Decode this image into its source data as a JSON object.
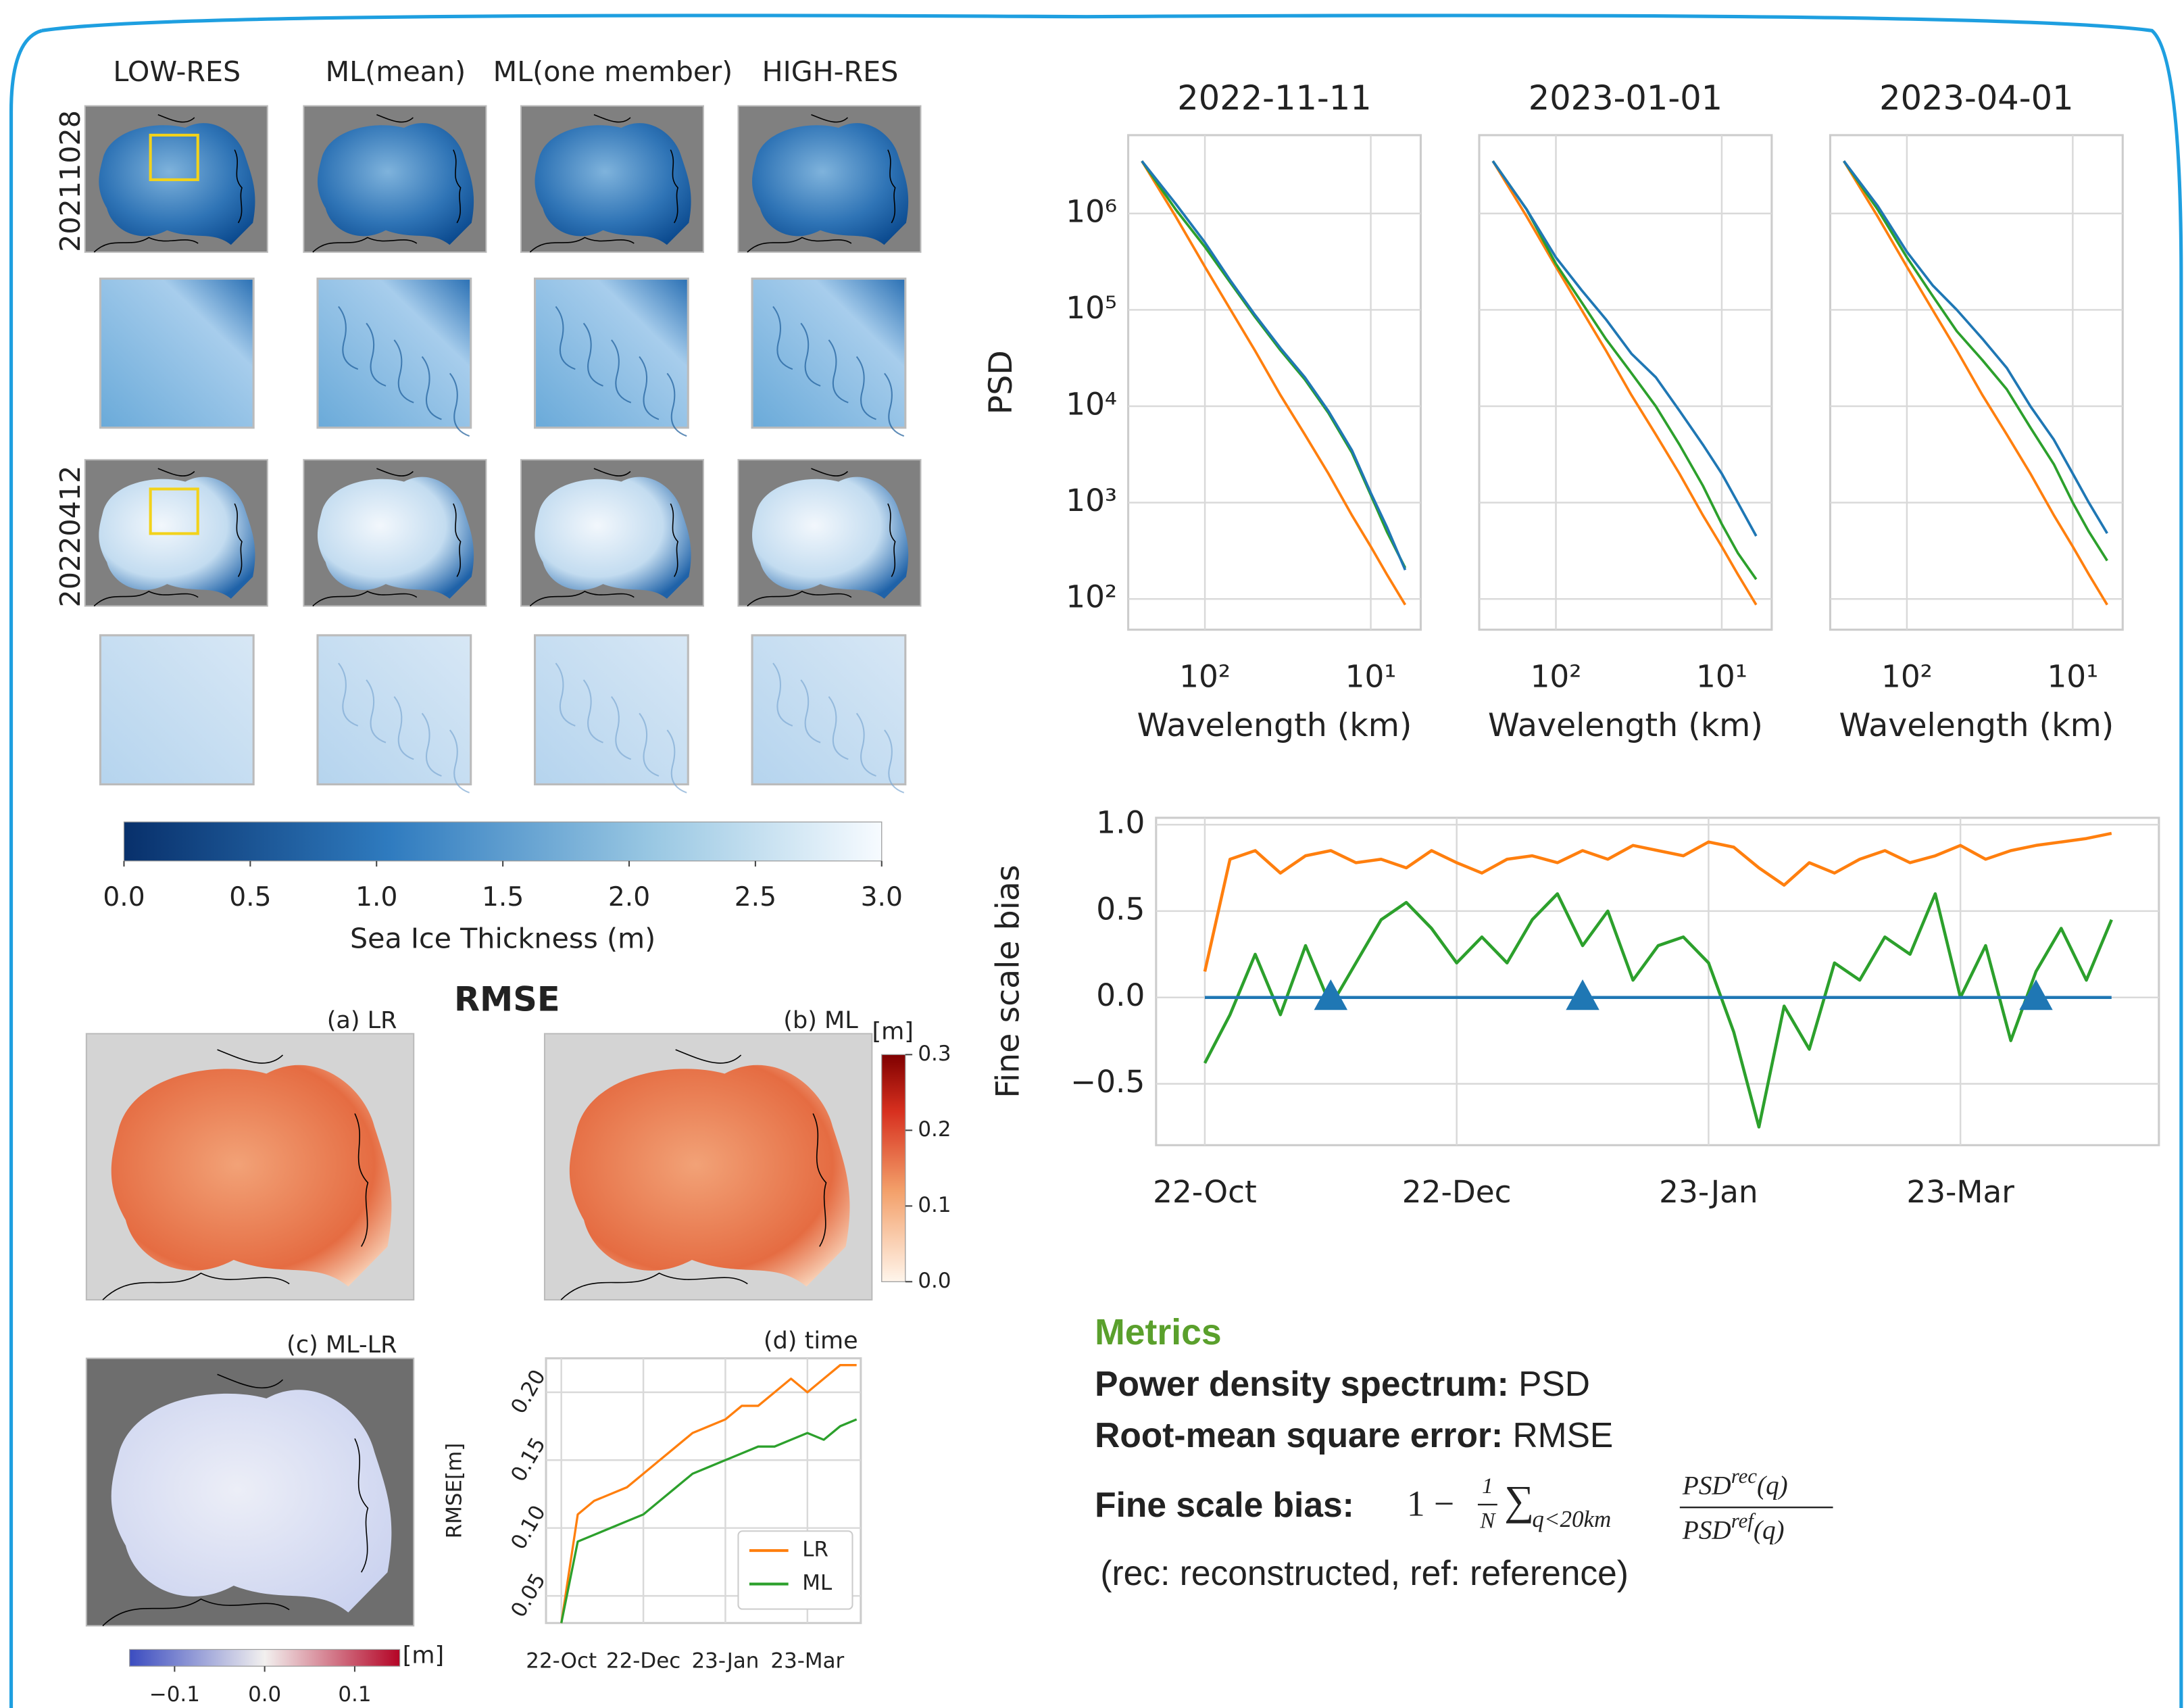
{
  "panels": {
    "columns": [
      "LOW-RES",
      "ML(mean)",
      "ML(one member)",
      "HIGH-RES"
    ],
    "rows": [
      "20211028",
      "20220412"
    ],
    "rmse_title": "RMSE",
    "rmse_panels": [
      "(a) LR",
      "(b) ML",
      "(c) ML-LR"
    ]
  },
  "colorbars": [
    {
      "label": "Sea Ice Thickness (m)",
      "lim": [
        0,
        3
      ],
      "ticks": [
        {
          "value": 0,
          "label": "0.0"
        },
        {
          "value": 0.5,
          "label": "0.5"
        },
        {
          "value": 1,
          "label": "1.0"
        },
        {
          "value": 1.5,
          "label": "1.5"
        },
        {
          "value": 2,
          "label": "2.0"
        },
        {
          "value": 2.5,
          "label": "2.5"
        },
        {
          "value": 3,
          "label": "3.0"
        }
      ]
    },
    {
      "label": "[m]",
      "lim": [
        0,
        0.3
      ],
      "ticks": [
        {
          "value": 0,
          "label": "0.0"
        },
        0.1,
        0.2,
        0.3
      ]
    },
    {
      "label": "[m]",
      "lim": [
        -0.15,
        0.15
      ],
      "ticks": [
        {
          "value": -0.1,
          "label": "−0.1"
        },
        {
          "value": 0,
          "label": "0.0"
        },
        0.1
      ]
    }
  ],
  "chart_data": [
    {
      "type": "line",
      "title": "(d) time",
      "ylabel": "RMSE[m]",
      "categories": [
        "22-Oct",
        null,
        null,
        null,
        null,
        "22-Dec",
        null,
        null,
        null,
        null,
        "23-Jan",
        null,
        null,
        null,
        null,
        "23-Mar",
        null,
        null,
        null
      ],
      "series": [
        {
          "name": "LR",
          "color": "#ff7f0e",
          "values": [
            0.03,
            0.11,
            0.12,
            0.125,
            0.13,
            0.14,
            0.15,
            0.16,
            0.17,
            0.175,
            0.18,
            0.19,
            0.19,
            0.2,
            0.21,
            0.2,
            0.21,
            0.22,
            0.22
          ]
        },
        {
          "name": "ML",
          "color": "#2ca02c",
          "values": [
            0.03,
            0.09,
            0.095,
            0.1,
            0.105,
            0.11,
            0.12,
            0.13,
            0.14,
            0.145,
            0.15,
            0.155,
            0.16,
            0.16,
            0.165,
            0.17,
            0.165,
            0.175,
            0.18
          ]
        }
      ],
      "ylim": [
        0.03,
        0.225
      ],
      "yticks": [
        0.05,
        {
          "value": 0.1,
          "label": "0.10"
        },
        0.15,
        {
          "value": 0.2,
          "label": "0.20"
        }
      ],
      "grid": true,
      "legend": "lower right"
    },
    {
      "type": "line",
      "title": "2022-11-11",
      "xlabel": "Wavelength (km)",
      "ylabel": "PSD",
      "log_x": true,
      "log_y": true,
      "x": [
        240,
        150,
        100,
        70,
        50,
        35,
        25,
        18,
        13,
        10,
        8,
        6.2
      ],
      "series": [
        {
          "color": "#ff7f0e",
          "values": [
            3500000,
            930000,
            280000,
            100000,
            38000,
            13000,
            5100,
            2000,
            740,
            350,
            180,
            87
          ]
        },
        {
          "color": "#2ca02c",
          "values": [
            3500000,
            1100000,
            450000,
            190000,
            85000,
            38000,
            19000,
            8500,
            3300,
            1200,
            500,
            210
          ]
        },
        {
          "color": "#1f77b4",
          "values": [
            3500000,
            1260000,
            500000,
            200000,
            89000,
            40000,
            20000,
            8900,
            3500,
            1260,
            560,
            200
          ]
        }
      ],
      "xlim": [
        290,
        5
      ],
      "ylim": [
        48,
        6500000
      ],
      "xticks": [
        {
          "value": 100,
          "label": "10²"
        },
        {
          "value": 10,
          "label": "10¹"
        }
      ],
      "yticks": [
        {
          "value": 100,
          "label": "10²"
        },
        {
          "value": 1000,
          "label": "10³"
        },
        {
          "value": 10000,
          "label": "10⁴"
        },
        {
          "value": 100000,
          "label": "10⁵"
        },
        {
          "value": 1000000,
          "label": "10⁶"
        }
      ],
      "grid": true
    },
    {
      "type": "line",
      "title": "2023-01-01",
      "xlabel": "Wavelength (km)",
      "log_x": true,
      "log_y": true,
      "x": [
        240,
        150,
        100,
        70,
        50,
        35,
        25,
        18,
        13,
        10,
        8,
        6.2
      ],
      "series": [
        {
          "color": "#ff7f0e",
          "values": [
            3500000,
            930000,
            280000,
            100000,
            38000,
            13000,
            5100,
            2000,
            740,
            350,
            180,
            87
          ]
        },
        {
          "color": "#2ca02c",
          "values": [
            3500000,
            1100000,
            300000,
            120000,
            50000,
            22000,
            10000,
            4000,
            1500,
            600,
            300,
            160
          ]
        },
        {
          "color": "#1f77b4",
          "values": [
            3500000,
            1100000,
            350000,
            160000,
            80000,
            35000,
            20000,
            9000,
            4000,
            2000,
            1000,
            450
          ]
        }
      ],
      "xlim": [
        290,
        5
      ],
      "ylim": [
        48,
        6500000
      ],
      "xticks": [
        {
          "value": 100,
          "label": "10²"
        },
        {
          "value": 10,
          "label": "10¹"
        }
      ],
      "grid": true
    },
    {
      "type": "line",
      "title": "2023-04-01",
      "xlabel": "Wavelength (km)",
      "log_x": true,
      "log_y": true,
      "x": [
        240,
        150,
        100,
        70,
        50,
        35,
        25,
        18,
        13,
        10,
        8,
        6.2
      ],
      "series": [
        {
          "color": "#ff7f0e",
          "values": [
            3500000,
            930000,
            280000,
            100000,
            38000,
            13000,
            5100,
            2000,
            740,
            350,
            180,
            87
          ]
        },
        {
          "color": "#2ca02c",
          "values": [
            3500000,
            1100000,
            350000,
            140000,
            60000,
            30000,
            15000,
            6000,
            2500,
            1000,
            500,
            250
          ]
        },
        {
          "color": "#1f77b4",
          "values": [
            3500000,
            1200000,
            400000,
            180000,
            100000,
            50000,
            25000,
            10000,
            4500,
            2000,
            1000,
            480
          ]
        }
      ],
      "xlim": [
        290,
        5
      ],
      "ylim": [
        48,
        6500000
      ],
      "xticks": [
        {
          "value": 100,
          "label": "10²"
        },
        {
          "value": 10,
          "label": "10¹"
        }
      ],
      "grid": true
    },
    {
      "type": "line",
      "ylabel": "Fine scale bias",
      "categories": [
        "22-Oct",
        null,
        null,
        null,
        null,
        null,
        null,
        null,
        null,
        null,
        "22-Dec",
        null,
        null,
        null,
        null,
        null,
        null,
        null,
        null,
        null,
        "23-Jan",
        null,
        null,
        null,
        null,
        null,
        null,
        null,
        null,
        null,
        "23-Mar",
        null,
        null,
        null,
        null,
        null,
        null
      ],
      "series": [
        {
          "color": "#ff7f0e",
          "values": [
            0.15,
            0.8,
            0.85,
            0.72,
            0.82,
            0.85,
            0.78,
            0.8,
            0.75,
            0.85,
            0.78,
            0.72,
            0.8,
            0.82,
            0.78,
            0.85,
            0.8,
            0.88,
            0.85,
            0.82,
            0.9,
            0.87,
            0.75,
            0.65,
            0.78,
            0.72,
            0.8,
            0.85,
            0.78,
            0.82,
            0.88,
            0.8,
            0.85,
            0.88,
            0.9,
            0.92,
            0.95
          ]
        },
        {
          "color": "#2ca02c",
          "values": [
            -0.38,
            -0.1,
            0.25,
            -0.1,
            0.3,
            -0.05,
            0.2,
            0.45,
            0.55,
            0.4,
            0.2,
            0.35,
            0.2,
            0.45,
            0.6,
            0.3,
            0.5,
            0.1,
            0.3,
            0.35,
            0.2,
            -0.2,
            -0.75,
            -0.05,
            -0.3,
            0.2,
            0.1,
            0.35,
            0.25,
            0.6,
            0,
            0.3,
            -0.25,
            0.15,
            0.4,
            0.1,
            0.45
          ]
        },
        {
          "color": "#1f77b4",
          "values": [
            0,
            0,
            0,
            0,
            0,
            0,
            0,
            0,
            0,
            0,
            0,
            0,
            0,
            0,
            0,
            0,
            0,
            0,
            0,
            0,
            0,
            0,
            0,
            0,
            0,
            0,
            0,
            0,
            0,
            0,
            0,
            0,
            0,
            0,
            0,
            0,
            0
          ]
        },
        {
          "color": "#1f77b4",
          "marker": "triangle",
          "values": [
            null,
            null,
            null,
            null,
            null,
            0,
            null,
            null,
            null,
            null,
            null,
            null,
            null,
            null,
            null,
            0,
            null,
            null,
            null,
            null,
            null,
            null,
            null,
            null,
            null,
            null,
            null,
            null,
            null,
            null,
            null,
            null,
            null,
            0,
            null,
            null,
            null
          ]
        }
      ],
      "ylim": [
        -0.855,
        1.04
      ],
      "yticks": [
        {
          "value": -0.5,
          "label": "−0.5"
        },
        {
          "value": 0,
          "label": "0.0"
        },
        0.5,
        {
          "value": 1,
          "label": "1.0"
        }
      ],
      "grid": true
    }
  ],
  "metrics": {
    "title": "Metrics",
    "items": [
      {
        "term": "Power density spectrum:",
        "text": "PSD"
      },
      {
        "term": "Root-mean square error:",
        "text": "RMSE"
      }
    ],
    "bias": {
      "term": "Fine scale bias:",
      "one": "1 −",
      "num": "1",
      "den": "N",
      "sum": "∑",
      "sub": "q<20km",
      "psd_top": "PSD",
      "sup_top": "rec",
      "arg_top": "(q)",
      "psd_bot": "PSD",
      "sup_bot": "ref",
      "arg_bot": "(q)"
    },
    "note": "(rec: reconstructed, ref: reference)"
  }
}
